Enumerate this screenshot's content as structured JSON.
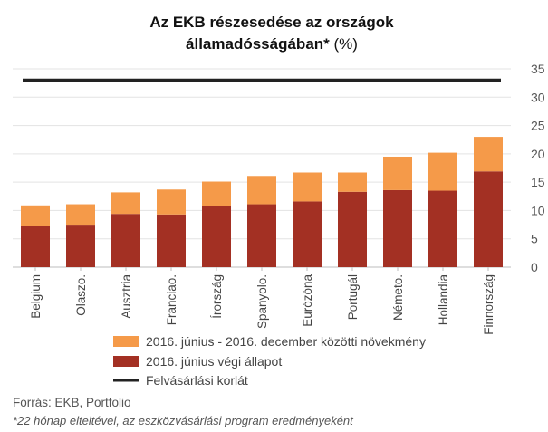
{
  "chart_data": {
    "type": "bar",
    "stacked": true,
    "title": "Az EKB részesedése az országok államadósságában* (%)",
    "title_lines": [
      "Az EKB részesedése az országok",
      "államadósságában*"
    ],
    "title_unit": "(%)",
    "categories": [
      "Belgium",
      "Olaszo.",
      "Ausztria",
      "Franciao.",
      "Írország",
      "Spanyolo.",
      "Eurózóna",
      "Portugál",
      "Németo.",
      "Hollandia",
      "Finnország"
    ],
    "series": [
      {
        "name": "2016. június végi állapot",
        "color": "#a33023",
        "values": [
          7.3,
          7.5,
          9.4,
          9.3,
          10.8,
          11.1,
          11.6,
          13.3,
          13.6,
          13.5,
          16.9
        ]
      },
      {
        "name": "2016. június - 2016. december közötti növekmény",
        "color": "#f59a49",
        "values": [
          3.6,
          3.6,
          3.8,
          4.4,
          4.3,
          5.0,
          5.1,
          3.4,
          5.9,
          6.7,
          6.1
        ]
      }
    ],
    "limit_line": {
      "name": "Felvásárlási korlát",
      "value": 33,
      "color": "#222222"
    },
    "ylim": [
      0,
      35
    ],
    "yticks": [
      0,
      5,
      10,
      15,
      20,
      25,
      30,
      35
    ],
    "y_axis_side": "right",
    "grid": true,
    "legend_order": [
      "2016. június - 2016. december közötti növekmény",
      "2016. június végi állapot",
      "Felvásárlási korlát"
    ],
    "legend_position": "bottom"
  },
  "notes": {
    "source": "Forrás: EKB, Portfolio",
    "footnote": "*22 hónap elteltével, az eszközvásárlási program eredményeként"
  }
}
